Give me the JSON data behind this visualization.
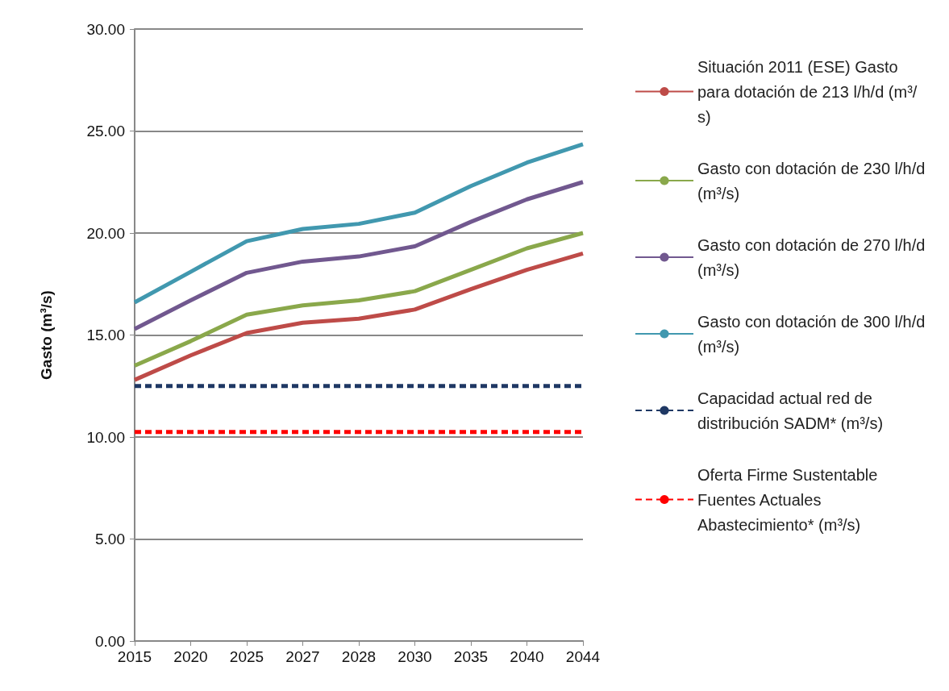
{
  "chart_data": {
    "type": "line",
    "ylabel": "Gasto (m³/s)",
    "categories": [
      "2015",
      "2020",
      "2025",
      "2027",
      "2028",
      "2030",
      "2035",
      "2040",
      "2044"
    ],
    "series": [
      {
        "name": "Situación 2011 (ESE) Gasto para dotación de 213 l/h/d (m³/s)",
        "color": "#be4b48",
        "values": [
          12.8,
          14.0,
          15.1,
          15.6,
          15.8,
          16.25,
          17.25,
          18.2,
          19.0
        ]
      },
      {
        "name": "Gasto con dotación de 230 l/h/d (m³/s)",
        "color": "#8aa84b",
        "values": [
          13.5,
          14.7,
          16.0,
          16.45,
          16.7,
          17.15,
          18.2,
          19.25,
          20.0
        ]
      },
      {
        "name": "Gasto con dotación de 270 l/h/d (m³/s)",
        "color": "#71588f",
        "values": [
          15.3,
          16.7,
          18.05,
          18.6,
          18.85,
          19.35,
          20.55,
          21.65,
          22.5
        ]
      },
      {
        "name": "Gasto con dotación de 300 l/h/d (m³/s)",
        "color": "#4198af",
        "values": [
          16.6,
          18.1,
          19.6,
          20.2,
          20.45,
          21.0,
          22.3,
          23.45,
          24.35
        ]
      },
      {
        "name": "Capacidad actual red de distribución SADM* (m³/s)",
        "color": "#1f3864",
        "line_style": "dashed",
        "values": [
          12.5,
          12.5,
          12.5,
          12.5,
          12.5,
          12.5,
          12.5,
          12.5,
          12.5
        ]
      },
      {
        "name": "Oferta Firme Sustentable Fuentes Actuales Abastecimiento* (m³/s)",
        "color": "#ff0000",
        "line_style": "dashed",
        "values": [
          10.25,
          10.25,
          10.25,
          10.25,
          10.25,
          10.25,
          10.25,
          10.25,
          10.25
        ]
      }
    ],
    "ylim": [
      0,
      30
    ],
    "yticks": [
      {
        "value": 0,
        "label": "0.00"
      },
      {
        "value": 5,
        "label": "5.00"
      },
      {
        "value": 10,
        "label": "10.00"
      },
      {
        "value": 15,
        "label": "15.00"
      },
      {
        "value": 20,
        "label": "20.00"
      },
      {
        "value": 25,
        "label": "25.00"
      },
      {
        "value": 30,
        "label": "30.00"
      }
    ],
    "grid": "y",
    "legend": "right",
    "marker": "none",
    "line_style": "solid"
  }
}
